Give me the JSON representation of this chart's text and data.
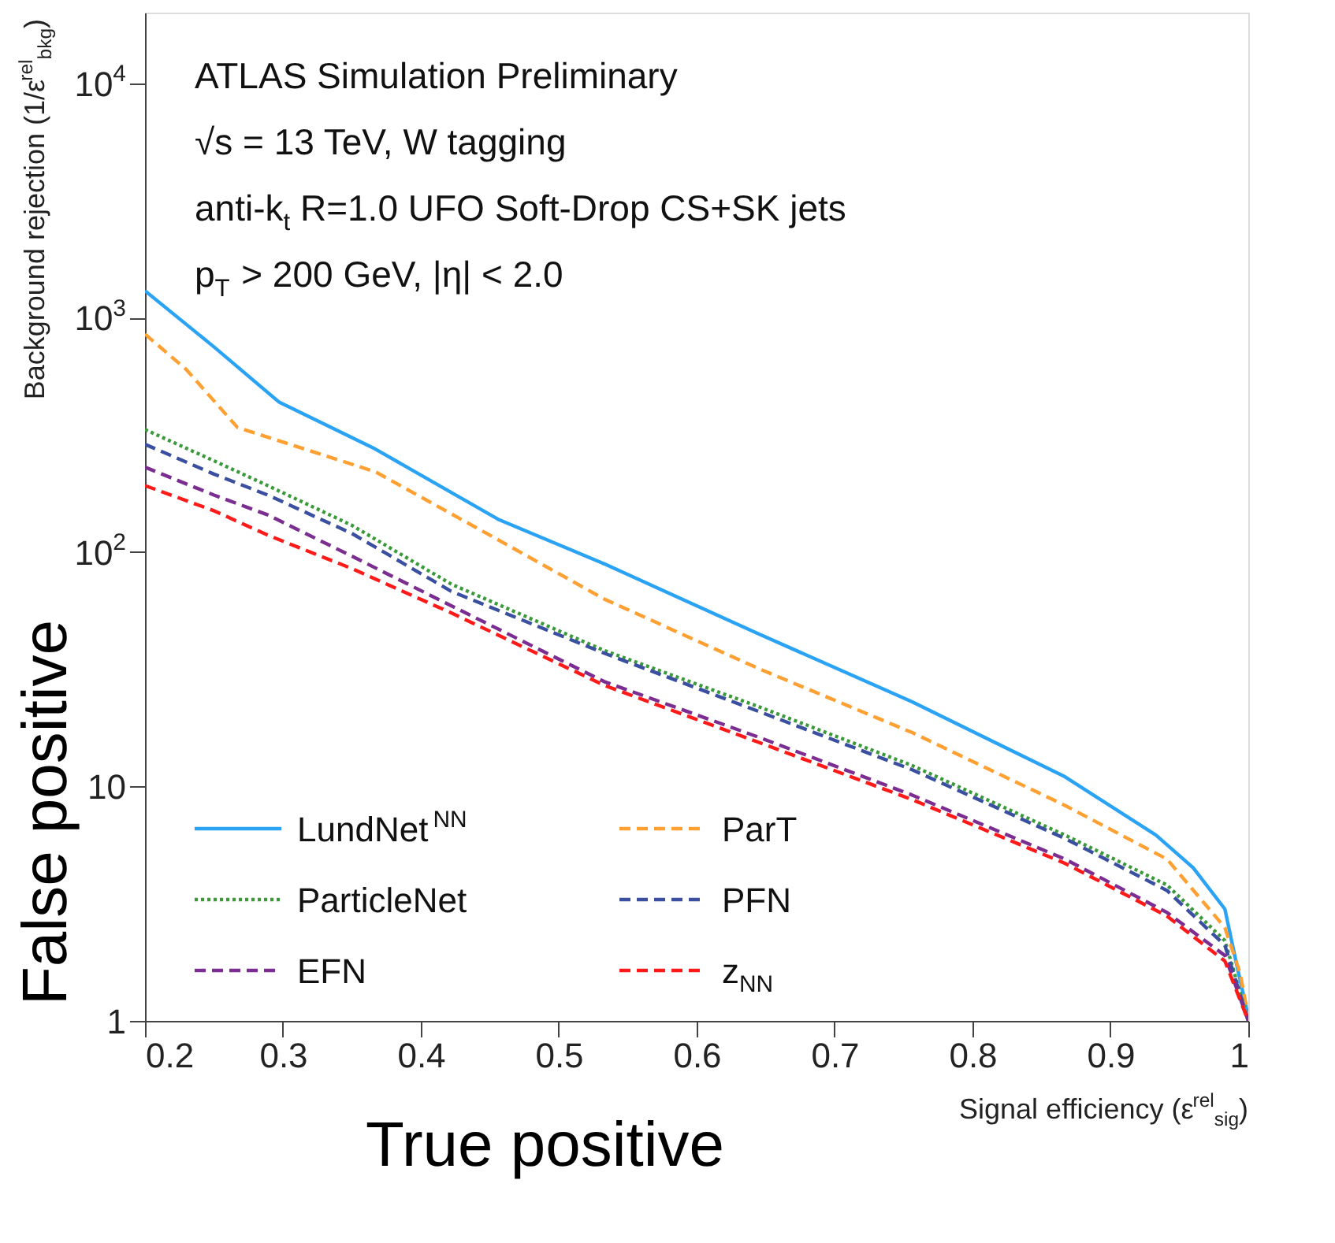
{
  "chart_data": {
    "type": "line",
    "xlabel": "Signal efficiency (ε$^{rel}$$_{sig}$)",
    "ylabel": "Background rejection (1/ε$^{rel}$$_{bkg}$)",
    "annotations": [
      "ATLAS Simulation Preliminary",
      "√s = 13 TeV, W tagging",
      "anti-k$_{t}$ R=1.0 UFO Soft-Drop CS+SK jets",
      "p$_{T}$ > 200 GeV, |η| < 2.0",
      "False positive",
      "True positive"
    ],
    "log": "y",
    "grid": false,
    "legend": "bottom left",
    "marker": "none",
    "xlim": [
      0.2,
      1.0
    ],
    "xticks": [
      0.2,
      0.3,
      0.4,
      0.5,
      0.6,
      0.7,
      0.8,
      0.9,
      1
    ],
    "ylim": [
      1,
      20000
    ],
    "yticks": [
      1,
      10,
      {
        "value": 100,
        "label": "10$^{2}$"
      },
      {
        "value": 1000,
        "label": "10$^{3}$"
      },
      {
        "value": 10000,
        "label": "10$^{4}$"
      }
    ],
    "series": [
      {
        "name": "LundNet$^{NN}$",
        "color": "#2ba3f5",
        "line_style": "solid",
        "x": [
          0.2,
          0.25,
          0.297,
          0.367,
          0.456,
          0.533,
          0.644,
          0.756,
          0.867,
          0.933,
          0.96,
          0.983,
          0.991,
          1.0
        ],
        "values": [
          1300,
          750,
          437,
          275,
          138,
          89,
          45,
          23,
          11,
          6.2,
          4.5,
          3.0,
          1.8,
          1.04
        ]
      },
      {
        "name": "ParT",
        "color": "#ffa033",
        "line_style": "dashed",
        "x": [
          0.2,
          0.23,
          0.267,
          0.367,
          0.45,
          0.533,
          0.644,
          0.756,
          0.867,
          0.941,
          0.983,
          0.994,
          1.0
        ],
        "values": [
          850,
          600,
          340,
          220,
          118,
          63,
          32,
          17,
          8.3,
          4.9,
          2.5,
          1.6,
          1.04
        ]
      },
      {
        "name": "ParticleNet",
        "color": "#3a9a3a",
        "line_style": "dotted",
        "x": [
          0.2,
          0.25,
          0.289,
          0.35,
          0.422,
          0.533,
          0.644,
          0.756,
          0.867,
          0.941,
          0.983,
          1.0
        ],
        "values": [
          333,
          245,
          192,
          130,
          73,
          38,
          22,
          12.3,
          6.2,
          3.8,
          2.2,
          1.0
        ]
      },
      {
        "name": "PFN",
        "color": "#3b4fa0",
        "line_style": "dashed",
        "x": [
          0.2,
          0.25,
          0.289,
          0.35,
          0.422,
          0.533,
          0.644,
          0.756,
          0.867,
          0.941,
          0.983,
          1.0
        ],
        "values": [
          288,
          215,
          175,
          120,
          68,
          37,
          21,
          11.8,
          6.0,
          3.6,
          2.1,
          1.0
        ]
      },
      {
        "name": "EFN",
        "color": "#7b2d91",
        "line_style": "dashed",
        "x": [
          0.2,
          0.25,
          0.289,
          0.35,
          0.422,
          0.533,
          0.644,
          0.756,
          0.867,
          0.941,
          0.983,
          1.0
        ],
        "values": [
          230,
          175,
          144,
          96,
          59,
          28,
          16.3,
          9.2,
          4.9,
          2.9,
          1.9,
          1.0
        ]
      },
      {
        "name": "z$_{NN}$",
        "color": "#ff1a1a",
        "line_style": "dashed",
        "x": [
          0.2,
          0.25,
          0.289,
          0.35,
          0.422,
          0.533,
          0.644,
          0.756,
          0.867,
          0.941,
          0.983,
          1.0
        ],
        "values": [
          192,
          150,
          118,
          85,
          55,
          27,
          15.5,
          8.8,
          4.7,
          2.8,
          1.8,
          1.0
        ]
      }
    ]
  }
}
